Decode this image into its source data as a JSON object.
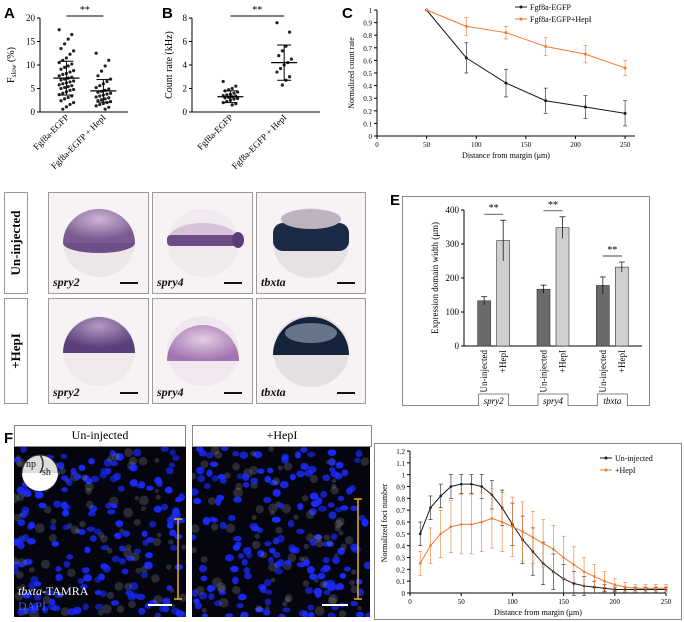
{
  "panels": {
    "A": {
      "label": "A",
      "ylabel": "F",
      "ylabel_sub": "slow",
      "ylabel_suffix": " (%)",
      "yticks": [
        "0",
        "5",
        "10",
        "15",
        "20"
      ],
      "groups": [
        "Fgf8a-EGFP",
        "Fgf8a-EGFP + HepI"
      ],
      "sig": "**"
    },
    "B": {
      "label": "B",
      "ylabel": "Count rate (kHz)",
      "yticks": [
        "0",
        "2",
        "4",
        "6",
        "8"
      ],
      "groups": [
        "Fgf8a-EGFP",
        "Fgf8a-EGFP + HepI"
      ],
      "sig": "**"
    },
    "C": {
      "label": "C",
      "xlabel": "Distance from margin (μm)",
      "ylabel": "Normalized count rate",
      "legend": [
        "Fgf8a-EGFP",
        "Fgf8a-EGFP+HepI"
      ],
      "yticks": [
        "0",
        "0.1",
        "0.2",
        "0.3",
        "0.4",
        "0.5",
        "0.6",
        "0.7",
        "0.8",
        "0.9",
        "1"
      ],
      "xticks": [
        "0",
        "50",
        "100",
        "150",
        "200",
        "250"
      ]
    },
    "D": {
      "label": "D",
      "rows": [
        "Un-injected",
        "+HepI"
      ],
      "genes": [
        "spry2",
        "spry4",
        "tbxta"
      ]
    },
    "E": {
      "label": "E",
      "ylabel": "Expression domain width (μm)",
      "yticks": [
        "0",
        "100",
        "200",
        "300",
        "400"
      ],
      "bar_labels": [
        "Un-injected",
        "+HepI"
      ],
      "genes": [
        "spry2",
        "spry4",
        "tbxta"
      ],
      "sig": "**"
    },
    "F": {
      "label": "F",
      "headers": [
        "Un-injected",
        "+HepI"
      ],
      "inset_np": "np",
      "inset_sh": "sh",
      "stain_gene": "tbxta",
      "stain_suffix": "-TAMRA",
      "dapi": "DAPI",
      "plot_xlabel": "Distance from margin (μm)",
      "plot_ylabel": "Normalized foci number",
      "legend": [
        "Un-injected",
        "+HepI"
      ],
      "yticks": [
        "0",
        "0.1",
        "0.2",
        "0.3",
        "0.4",
        "0.5",
        "0.6",
        "0.7",
        "0.8",
        "0.9",
        "1",
        "1.1",
        "1.2"
      ],
      "xticks": [
        "0",
        "50",
        "100",
        "150",
        "200",
        "250"
      ]
    }
  },
  "colors": {
    "black_series": "#1a1a1a",
    "orange_series": "#f07a30",
    "dark_bar": "#6b6b6b",
    "light_bar": "#cfcfcf",
    "dapi": "#1a2bff",
    "scale_bar": "#e8b020"
  },
  "chart_data": [
    {
      "type": "scatter",
      "panel": "A",
      "categories": [
        "Fgf8a-EGFP",
        "Fgf8a-EGFP + HepI"
      ],
      "mean": [
        7.2,
        4.5
      ],
      "sd": [
        3.6,
        2.4
      ],
      "ylim": [
        0,
        20
      ],
      "points": [
        [
          17.5,
          16.5,
          15.5,
          14.5,
          13.5,
          13,
          12.3,
          11.5,
          11,
          10.5,
          10.2,
          9.8,
          9.5,
          9.1,
          8.8,
          8.5,
          8.2,
          8,
          7.7,
          7.4,
          7.2,
          7,
          6.8,
          6.6,
          6.4,
          6.2,
          6,
          5.8,
          5.6,
          5.4,
          5.2,
          5,
          4.8,
          4.6,
          4.3,
          4,
          3.7,
          3.4,
          3.1,
          2.8,
          2.4,
          2,
          1.6,
          1.1,
          0.6
        ],
        [
          12.5,
          11,
          9.8,
          8.7,
          7.7,
          7,
          6.5,
          6,
          5.6,
          5.2,
          4.9,
          4.6,
          4.4,
          4.2,
          4,
          3.8,
          3.6,
          3.4,
          3.2,
          3,
          2.8,
          2.6,
          2.4,
          2.2,
          2,
          1.8,
          1.6,
          1.3,
          1,
          0.6
        ]
      ]
    },
    {
      "type": "scatter",
      "panel": "B",
      "categories": [
        "Fgf8a-EGFP",
        "Fgf8a-EGFP + HepI"
      ],
      "mean": [
        1.3,
        4.2
      ],
      "sd": [
        0.5,
        1.5
      ],
      "ylim": [
        0,
        8
      ],
      "points": [
        [
          2.6,
          2.2,
          2,
          1.9,
          1.8,
          1.7,
          1.6,
          1.5,
          1.45,
          1.4,
          1.35,
          1.3,
          1.25,
          1.2,
          1.15,
          1.1,
          1,
          0.9,
          0.8,
          0.7,
          0.6
        ],
        [
          7.6,
          6.8,
          5.6,
          5.2,
          4.8,
          4.5,
          4.2,
          4,
          3.7,
          3.4,
          3,
          2.7,
          2.3
        ]
      ]
    },
    {
      "type": "line",
      "panel": "C",
      "x": [
        50,
        90,
        130,
        170,
        210,
        250
      ],
      "xlim": [
        0,
        260
      ],
      "ylim": [
        0,
        1
      ],
      "series": [
        {
          "name": "Fgf8a-EGFP",
          "values": [
            1,
            0.62,
            0.42,
            0.28,
            0.23,
            0.18
          ],
          "err": [
            0,
            0.12,
            0.11,
            0.1,
            0.09,
            0.1
          ]
        },
        {
          "name": "Fgf8a-EGFP+HepI",
          "values": [
            1,
            0.87,
            0.82,
            0.71,
            0.65,
            0.54
          ],
          "err": [
            0,
            0.07,
            0.05,
            0.07,
            0.07,
            0.06
          ]
        }
      ]
    },
    {
      "type": "bar",
      "panel": "E",
      "categories": [
        "spry2",
        "spry4",
        "tbxta"
      ],
      "ylim": [
        0,
        400
      ],
      "series": [
        {
          "name": "Un-injected",
          "values": [
            133,
            167,
            178
          ],
          "err": [
            12,
            12,
            25
          ]
        },
        {
          "name": "+HepI",
          "values": [
            310,
            348,
            232
          ],
          "err": [
            60,
            32,
            15
          ]
        }
      ]
    },
    {
      "type": "line",
      "panel": "F",
      "x": [
        10,
        20,
        30,
        40,
        50,
        60,
        70,
        80,
        90,
        100,
        110,
        120,
        130,
        140,
        150,
        160,
        170,
        180,
        190,
        200,
        210,
        220,
        230,
        240,
        250
      ],
      "xlim": [
        0,
        250
      ],
      "ylim": [
        0,
        1.2
      ],
      "series": [
        {
          "name": "Un-injected",
          "values": [
            0.5,
            0.72,
            0.82,
            0.9,
            0.92,
            0.92,
            0.9,
            0.83,
            0.72,
            0.58,
            0.45,
            0.35,
            0.25,
            0.18,
            0.12,
            0.08,
            0.06,
            0.05,
            0.04,
            0.03,
            0.03,
            0.03,
            0.03,
            0.03,
            0.03
          ],
          "err": [
            0.1,
            0.1,
            0.1,
            0.1,
            0.08,
            0.08,
            0.1,
            0.12,
            0.15,
            0.18,
            0.2,
            0.2,
            0.18,
            0.15,
            0.12,
            0.1,
            0.08,
            0.05,
            0.03,
            0.02,
            0.02,
            0.02,
            0.02,
            0.02,
            0.02
          ]
        },
        {
          "name": "+HepI",
          "values": [
            0.25,
            0.4,
            0.5,
            0.56,
            0.58,
            0.58,
            0.6,
            0.63,
            0.6,
            0.56,
            0.52,
            0.47,
            0.42,
            0.37,
            0.3,
            0.24,
            0.18,
            0.14,
            0.1,
            0.07,
            0.05,
            0.04,
            0.04,
            0.04,
            0.04
          ],
          "err": [
            0.1,
            0.15,
            0.2,
            0.22,
            0.25,
            0.25,
            0.25,
            0.25,
            0.25,
            0.25,
            0.25,
            0.22,
            0.2,
            0.2,
            0.18,
            0.15,
            0.12,
            0.1,
            0.08,
            0.05,
            0.04,
            0.03,
            0.03,
            0.03,
            0.03
          ]
        }
      ]
    }
  ]
}
